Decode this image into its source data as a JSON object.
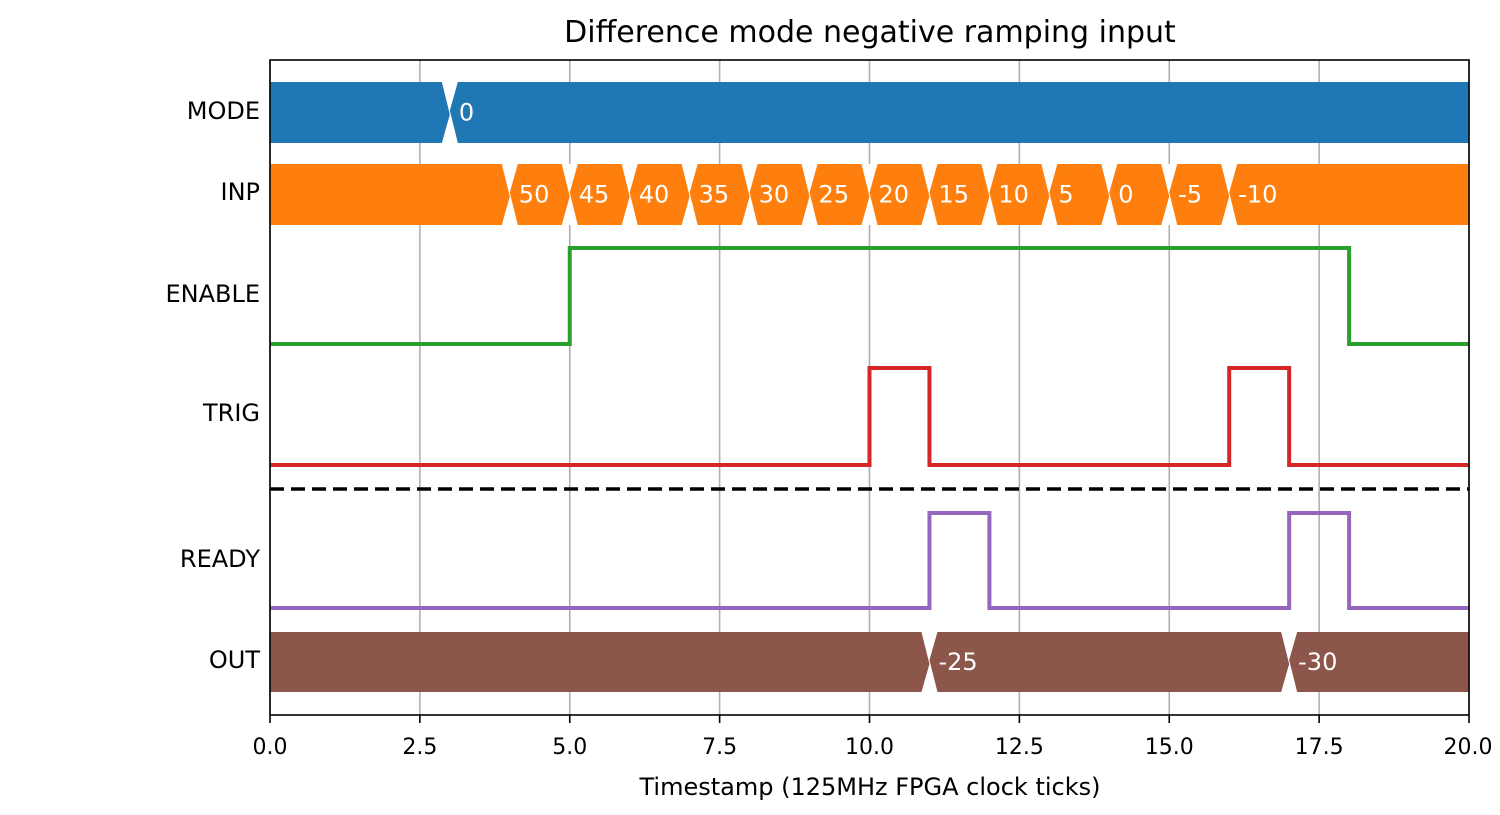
{
  "chart_data": {
    "type": "timing",
    "title": "Difference mode negative ramping input",
    "xlabel": "Timestamp (125MHz FPGA clock ticks)",
    "xlim": [
      0,
      20
    ],
    "xticks": [
      0,
      2.5,
      5,
      7.5,
      10,
      12.5,
      15,
      17.5,
      20
    ],
    "xtick_labels": [
      "0.0",
      "2.5",
      "5.0",
      "7.5",
      "10.0",
      "12.5",
      "15.0",
      "17.5",
      "20.0"
    ],
    "grid": "vertical",
    "separator": {
      "style": "dashed",
      "between": [
        "TRIG",
        "READY"
      ],
      "color": "#000000"
    },
    "signals": [
      {
        "name": "MODE",
        "kind": "bus",
        "color": "#1f77b4",
        "transitions": [
          3
        ],
        "segments": [
          {
            "start": 0,
            "end": 3,
            "label": ""
          },
          {
            "start": 3,
            "end": 20,
            "label": "0"
          }
        ]
      },
      {
        "name": "INP",
        "kind": "bus",
        "color": "#ff7f0e",
        "transitions": [
          4,
          5,
          6,
          7,
          8,
          9,
          10,
          11,
          12,
          13,
          14,
          15,
          16
        ],
        "segments": [
          {
            "start": 0,
            "end": 4,
            "label": ""
          },
          {
            "start": 4,
            "end": 5,
            "label": "50"
          },
          {
            "start": 5,
            "end": 6,
            "label": "45"
          },
          {
            "start": 6,
            "end": 7,
            "label": "40"
          },
          {
            "start": 7,
            "end": 8,
            "label": "35"
          },
          {
            "start": 8,
            "end": 9,
            "label": "30"
          },
          {
            "start": 9,
            "end": 10,
            "label": "25"
          },
          {
            "start": 10,
            "end": 11,
            "label": "20"
          },
          {
            "start": 11,
            "end": 12,
            "label": "15"
          },
          {
            "start": 12,
            "end": 13,
            "label": "10"
          },
          {
            "start": 13,
            "end": 14,
            "label": "5"
          },
          {
            "start": 14,
            "end": 15,
            "label": "0"
          },
          {
            "start": 15,
            "end": 16,
            "label": "-5"
          },
          {
            "start": 16,
            "end": 20,
            "label": "-10"
          }
        ]
      },
      {
        "name": "ENABLE",
        "kind": "digital",
        "color": "#2ca02c",
        "steps": [
          [
            0,
            0
          ],
          [
            5,
            1
          ],
          [
            18,
            0
          ]
        ]
      },
      {
        "name": "TRIG",
        "kind": "digital",
        "color": "#d62728",
        "steps": [
          [
            0,
            0
          ],
          [
            10,
            1
          ],
          [
            11,
            0
          ],
          [
            16,
            1
          ],
          [
            17,
            0
          ]
        ]
      },
      {
        "name": "READY",
        "kind": "digital",
        "color": "#9467bd",
        "steps": [
          [
            0,
            0
          ],
          [
            11,
            1
          ],
          [
            12,
            0
          ],
          [
            17,
            1
          ],
          [
            18,
            0
          ]
        ]
      },
      {
        "name": "OUT",
        "kind": "bus",
        "color": "#8c564b",
        "transitions": [
          11,
          17
        ],
        "segments": [
          {
            "start": 0,
            "end": 11,
            "label": ""
          },
          {
            "start": 11,
            "end": 17,
            "label": "-25"
          },
          {
            "start": 17,
            "end": 20,
            "label": "-30"
          }
        ]
      }
    ]
  }
}
